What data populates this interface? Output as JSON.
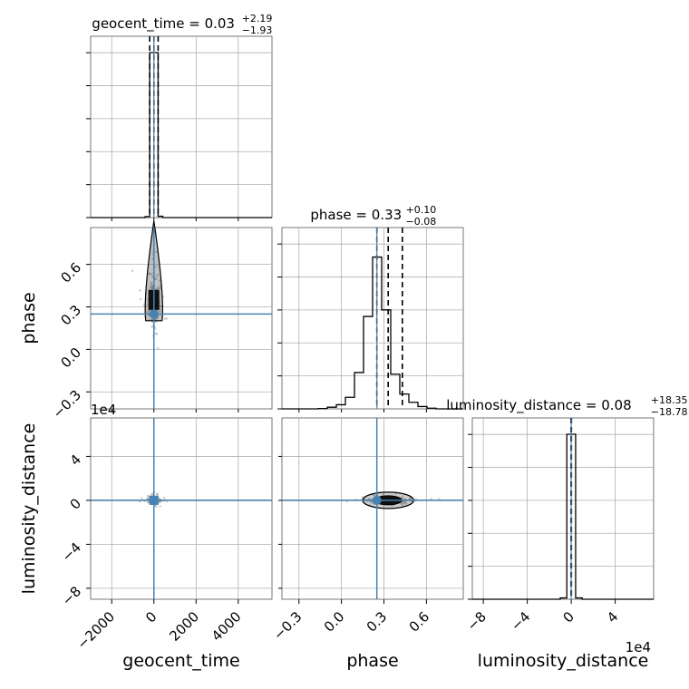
{
  "chart_data": {
    "type": "corner",
    "parameters": [
      "geocent_time",
      "phase",
      "luminosity_distance"
    ],
    "axis_labels": {
      "geocent_time": "geocent_time",
      "phase": "phase",
      "luminosity_distance": "luminosity_distance"
    },
    "ranges": {
      "geocent_time": [
        -3000,
        5600
      ],
      "phase": [
        -0.42,
        0.86
      ],
      "luminosity_distance": [
        -90000,
        75000
      ]
    },
    "ticks": {
      "geocent_time": {
        "values": [
          -2000,
          0,
          2000,
          4000
        ],
        "labels": [
          "−2000",
          "0",
          "2000",
          "4000"
        ]
      },
      "phase": {
        "values": [
          -0.3,
          0.0,
          0.3,
          0.6
        ],
        "labels": [
          "−0.3",
          "0.0",
          "0.3",
          "0.6"
        ]
      },
      "luminosity_distance": {
        "values": [
          -80000,
          -40000,
          0,
          40000
        ],
        "labels": [
          "−8",
          "−4",
          "0",
          "4"
        ],
        "multiplier": "1e4"
      }
    },
    "titles": {
      "geocent_time": {
        "name": "geocent_time = 0.03",
        "plus": "+2.19",
        "minus": "−1.93"
      },
      "phase": {
        "name": "phase = 0.33",
        "plus": "+0.10",
        "minus": "−0.08"
      },
      "luminosity_distance": {
        "name": "luminosity_distance = 0.08",
        "plus": "+18.35",
        "minus": "−18.78"
      }
    },
    "truths": {
      "geocent_time": 0,
      "phase": 0.25,
      "luminosity_distance": 0
    },
    "truth_color": "#4682b4",
    "hist_color": "#000000",
    "quantiles": {
      "geocent_time": [
        -1.93,
        0.03,
        2.19
      ],
      "phase": [
        0.25,
        0.33,
        0.43
      ],
      "luminosity_distance": [
        -18.78,
        0.08,
        18.35
      ]
    },
    "histograms": {
      "geocent_time": {
        "edges": [
          -3000,
          -2570,
          -2140,
          -1710,
          -1280,
          -850,
          -420,
          -200,
          200,
          420,
          850,
          1280,
          1710,
          2140,
          2570,
          3000,
          5600
        ],
        "counts": [
          0,
          0,
          0,
          0,
          0,
          0,
          0.006,
          1.0,
          0.008,
          0,
          0,
          0,
          0,
          0,
          0,
          0
        ]
      },
      "phase": {
        "edges": [
          -0.42,
          -0.356,
          -0.292,
          -0.228,
          -0.164,
          -0.1,
          -0.036,
          0.028,
          0.092,
          0.156,
          0.22,
          0.284,
          0.348,
          0.412,
          0.476,
          0.54,
          0.604,
          0.668,
          0.732,
          0.796,
          0.86
        ],
        "counts": [
          0,
          0,
          0,
          0,
          0.002,
          0.01,
          0.025,
          0.07,
          0.22,
          0.56,
          0.92,
          0.6,
          0.21,
          0.09,
          0.04,
          0.014,
          0.004,
          0,
          0,
          0
        ]
      },
      "luminosity_distance": {
        "edges": [
          -90000,
          -82000,
          -74000,
          -66000,
          -58000,
          -50000,
          -42000,
          -34000,
          -26000,
          -18000,
          -10000,
          -4000,
          4000,
          10000,
          18000,
          26000,
          34000,
          42000,
          50000,
          58000,
          66000,
          75000
        ],
        "counts": [
          0,
          0,
          0,
          0,
          0,
          0,
          0,
          0,
          0,
          0,
          0.008,
          1.0,
          0.008,
          0,
          0,
          0,
          0,
          0,
          0,
          0,
          0
        ]
      }
    }
  }
}
